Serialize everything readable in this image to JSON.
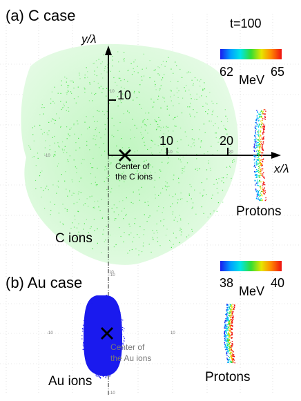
{
  "panel_a": {
    "title": "(a) C case",
    "time_label": "t=100",
    "y_axis_label": "y/λ",
    "x_axis_label": "x/λ",
    "y_tick": "10",
    "x_ticks": [
      "10",
      "20"
    ],
    "center_label_line1": "Center of",
    "center_label_line2": "the C ions",
    "ions_label": "C ions",
    "protons_label": "Protons",
    "colorbar": {
      "min": "62",
      "max": "65",
      "unit": "MeV"
    },
    "faint_ticks": [
      "10",
      "10",
      "20",
      "-10",
      "-10"
    ]
  },
  "panel_b": {
    "title": "(b) Au case",
    "center_label_line1": "Center of",
    "center_label_line2": "the Au ions",
    "ions_label": "Au ions",
    "protons_label": "Protons",
    "colorbar": {
      "min": "38",
      "max": "40",
      "unit": "MeV"
    },
    "faint_ticks": [
      "-10",
      "10",
      "-10",
      "10"
    ]
  },
  "colors": {
    "c_ions": "#22dd22",
    "au_ions": "#1a1aee",
    "colormap": [
      "#1a1aee",
      "#00a0ff",
      "#00e5e5",
      "#33dd33",
      "#e6e600",
      "#ff8800",
      "#ee1111"
    ]
  },
  "icons": {
    "center_marker": "x-mark-icon"
  }
}
